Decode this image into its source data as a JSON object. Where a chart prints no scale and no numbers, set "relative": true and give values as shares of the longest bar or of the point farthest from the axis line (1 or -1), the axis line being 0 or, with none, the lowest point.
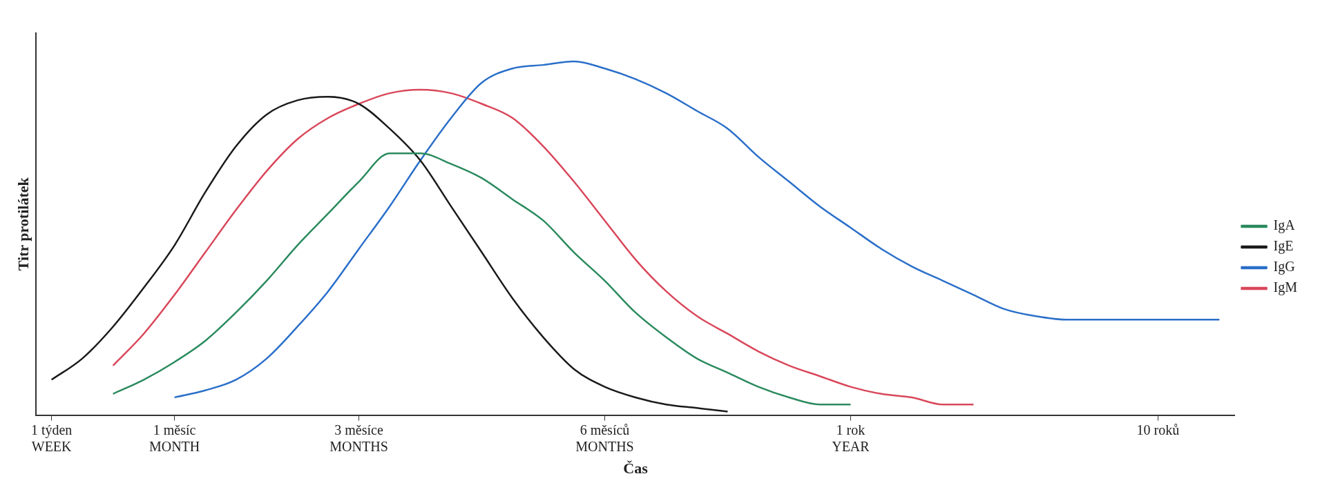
{
  "chart_data": {
    "type": "line",
    "relative": true,
    "xlabel": "Čas",
    "ylabel": "Titr protilátek",
    "legend": "right",
    "grid": false,
    "marker": "none",
    "line_style": "solid",
    "categories": [
      "1 týden\nWEEK",
      null,
      null,
      null,
      "1 měsíc\nMONTH",
      null,
      null,
      null,
      null,
      null,
      "3 měsíce\nMONTHS",
      null,
      null,
      null,
      null,
      null,
      null,
      null,
      "6 měsíců\nMONTHS",
      null,
      null,
      null,
      null,
      null,
      null,
      null,
      "1 rok\nYEAR",
      null,
      null,
      null,
      null,
      null,
      null,
      null,
      null,
      null,
      "10 roků",
      null,
      null
    ],
    "series": [
      {
        "name": "IgA",
        "color": "#2a8a5e",
        "values": [
          null,
          null,
          0.06,
          0.1,
          0.15,
          0.21,
          0.29,
          0.38,
          0.48,
          0.57,
          0.66,
          0.74,
          0.74,
          0.71,
          0.67,
          0.61,
          0.55,
          0.46,
          0.38,
          0.29,
          0.22,
          0.16,
          0.12,
          0.08,
          0.05,
          0.03,
          0.03,
          null,
          null,
          null,
          null,
          null,
          null,
          null,
          null,
          null,
          null,
          null,
          null
        ]
      },
      {
        "name": "IgE",
        "color": "#1a1a1a",
        "values": [
          0.1,
          0.16,
          0.25,
          0.36,
          0.48,
          0.63,
          0.76,
          0.85,
          0.89,
          0.9,
          0.88,
          0.81,
          0.72,
          0.59,
          0.46,
          0.33,
          0.22,
          0.13,
          0.08,
          0.05,
          0.03,
          0.02,
          0.01,
          null,
          null,
          null,
          null,
          null,
          null,
          null,
          null,
          null,
          null,
          null,
          null,
          null,
          null,
          null,
          null
        ]
      },
      {
        "name": "IgG",
        "color": "#2a6fc9",
        "values": [
          null,
          null,
          null,
          null,
          0.05,
          0.07,
          0.1,
          0.16,
          0.25,
          0.35,
          0.47,
          0.59,
          0.72,
          0.84,
          0.94,
          0.98,
          0.99,
          1,
          0.98,
          0.95,
          0.91,
          0.86,
          0.81,
          0.73,
          0.66,
          0.59,
          0.53,
          0.47,
          0.42,
          0.38,
          0.34,
          0.3,
          0.28,
          0.27,
          0.27,
          0.27,
          0.27,
          0.27,
          0.27
        ]
      },
      {
        "name": "IgM",
        "color": "#d9475a",
        "values": [
          null,
          null,
          0.14,
          0.23,
          0.34,
          0.46,
          0.58,
          0.69,
          0.78,
          0.84,
          0.88,
          0.91,
          0.92,
          0.91,
          0.88,
          0.84,
          0.76,
          0.66,
          0.55,
          0.44,
          0.35,
          0.28,
          0.23,
          0.18,
          0.14,
          0.11,
          0.08,
          0.06,
          0.05,
          0.03,
          0.03,
          null,
          null,
          null,
          null,
          null,
          null,
          null,
          null
        ]
      }
    ]
  }
}
